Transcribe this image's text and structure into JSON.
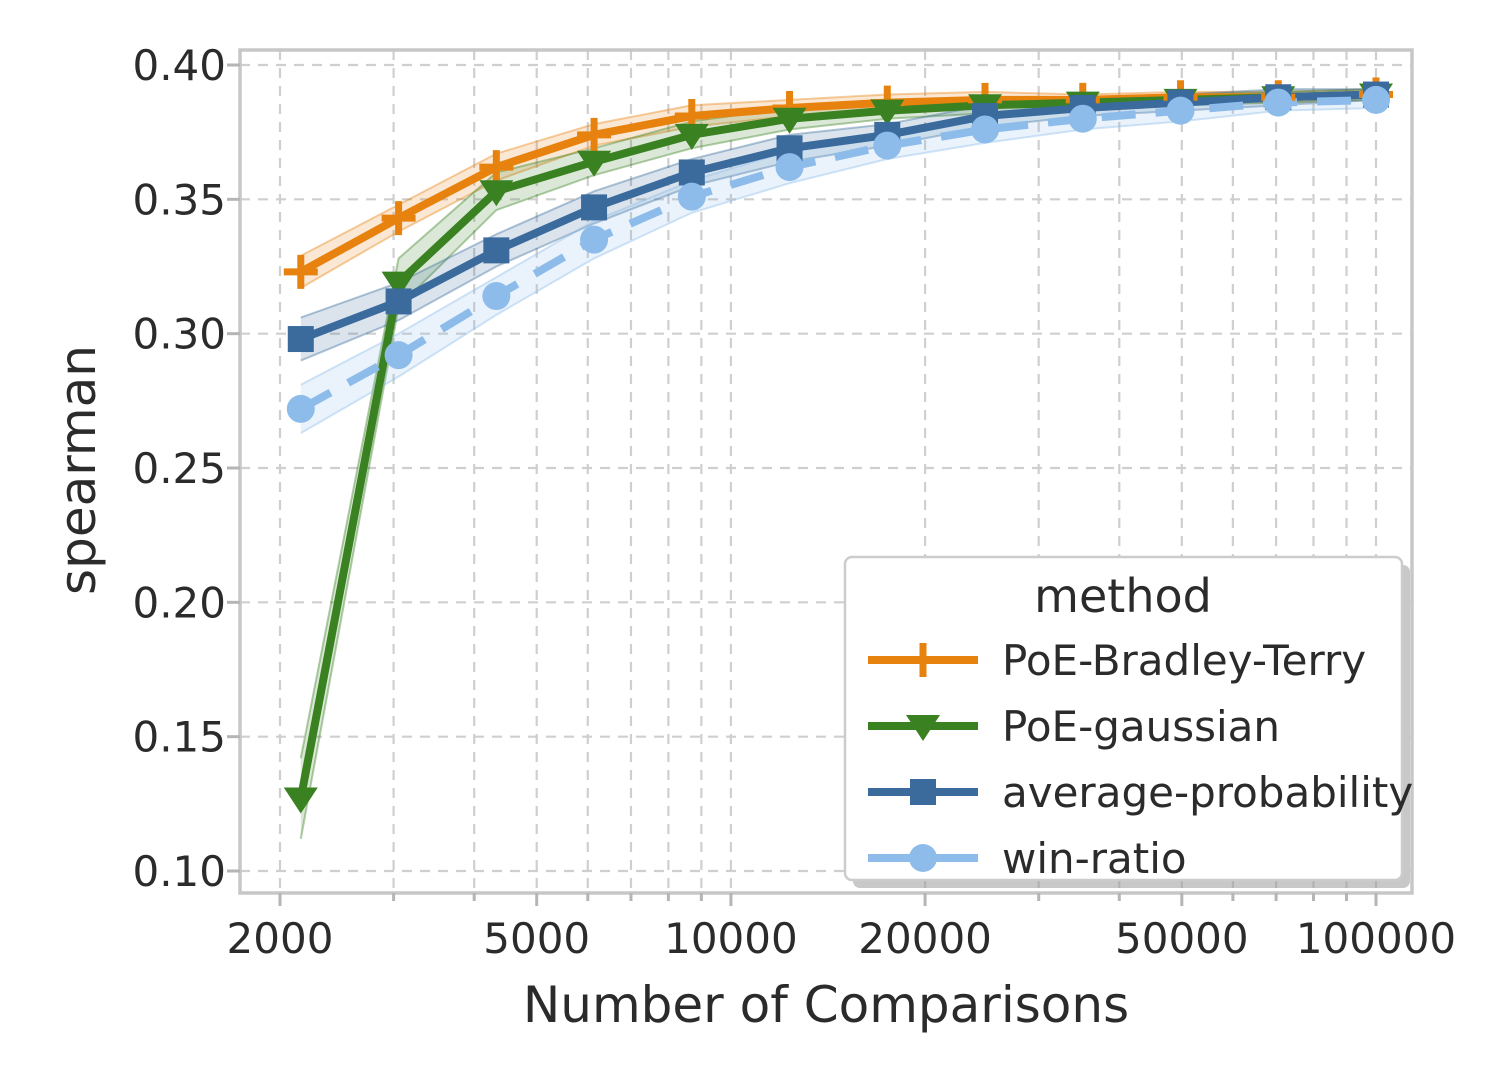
{
  "chart_data": {
    "type": "line",
    "title": "",
    "xlabel": "Number of Comparisons",
    "ylabel": "spearman",
    "x_scale": "log",
    "xlim": [
      1730,
      114000
    ],
    "ylim": [
      0.092,
      0.406
    ],
    "grid": "dashed, major y + log minor x",
    "x_tick_labels": [
      {
        "value": 2000,
        "label": "2000"
      },
      {
        "value": 5000,
        "label": "5000"
      },
      {
        "value": 10000,
        "label": "10000"
      },
      {
        "value": 20000,
        "label": "20000"
      },
      {
        "value": 50000,
        "label": "50000"
      },
      {
        "value": 100000,
        "label": "100000"
      }
    ],
    "x_minor_ticks": [
      2000,
      3000,
      4000,
      5000,
      6000,
      7000,
      8000,
      9000,
      10000,
      20000,
      30000,
      40000,
      50000,
      60000,
      70000,
      80000,
      90000,
      100000
    ],
    "y_ticks": [
      {
        "value": 0.1,
        "label": "0.10"
      },
      {
        "value": 0.15,
        "label": "0.15"
      },
      {
        "value": 0.2,
        "label": "0.20"
      },
      {
        "value": 0.25,
        "label": "0.25"
      },
      {
        "value": 0.3,
        "label": "0.30"
      },
      {
        "value": 0.35,
        "label": "0.35"
      },
      {
        "value": 0.4,
        "label": "0.40"
      }
    ],
    "legend": {
      "title": "method",
      "position": "lower right"
    },
    "x": [
      2154,
      3054,
      4329,
      6136,
      8697,
      12328,
      17475,
      24770,
      35112,
      49770,
      70548,
      100000
    ],
    "series": [
      {
        "name": "PoE-Bradley-Terry",
        "color": "#e8820e",
        "marker": "plus",
        "line": "solid",
        "values": [
          0.323,
          0.343,
          0.362,
          0.374,
          0.381,
          0.384,
          0.386,
          0.387,
          0.387,
          0.388,
          0.388,
          0.389
        ],
        "band": [
          0.006,
          0.005,
          0.005,
          0.004,
          0.004,
          0.003,
          0.003,
          0.003,
          0.002,
          0.002,
          0.002,
          0.002
        ]
      },
      {
        "name": "PoE-gaussian",
        "color": "#3a8121",
        "marker": "triangle-down",
        "line": "solid",
        "values": [
          0.127,
          0.319,
          0.353,
          0.364,
          0.374,
          0.38,
          0.383,
          0.385,
          0.386,
          0.387,
          0.388,
          0.389
        ],
        "band": [
          0.015,
          0.009,
          0.007,
          0.005,
          0.005,
          0.004,
          0.003,
          0.003,
          0.002,
          0.002,
          0.002,
          0.002
        ]
      },
      {
        "name": "average-probability",
        "color": "#3a6b9c",
        "marker": "square",
        "line": "solid",
        "values": [
          0.298,
          0.312,
          0.331,
          0.347,
          0.36,
          0.369,
          0.374,
          0.381,
          0.384,
          0.386,
          0.388,
          0.389
        ],
        "band": [
          0.008,
          0.007,
          0.006,
          0.006,
          0.005,
          0.005,
          0.004,
          0.004,
          0.003,
          0.003,
          0.003,
          0.002
        ]
      },
      {
        "name": "win-ratio",
        "color": "#8dbceb",
        "marker": "circle",
        "line": "dashed",
        "values": [
          0.272,
          0.292,
          0.314,
          0.335,
          0.351,
          0.362,
          0.37,
          0.376,
          0.38,
          0.383,
          0.386,
          0.387
        ],
        "band": [
          0.009,
          0.008,
          0.007,
          0.007,
          0.006,
          0.006,
          0.005,
          0.005,
          0.004,
          0.004,
          0.003,
          0.003
        ]
      }
    ]
  }
}
